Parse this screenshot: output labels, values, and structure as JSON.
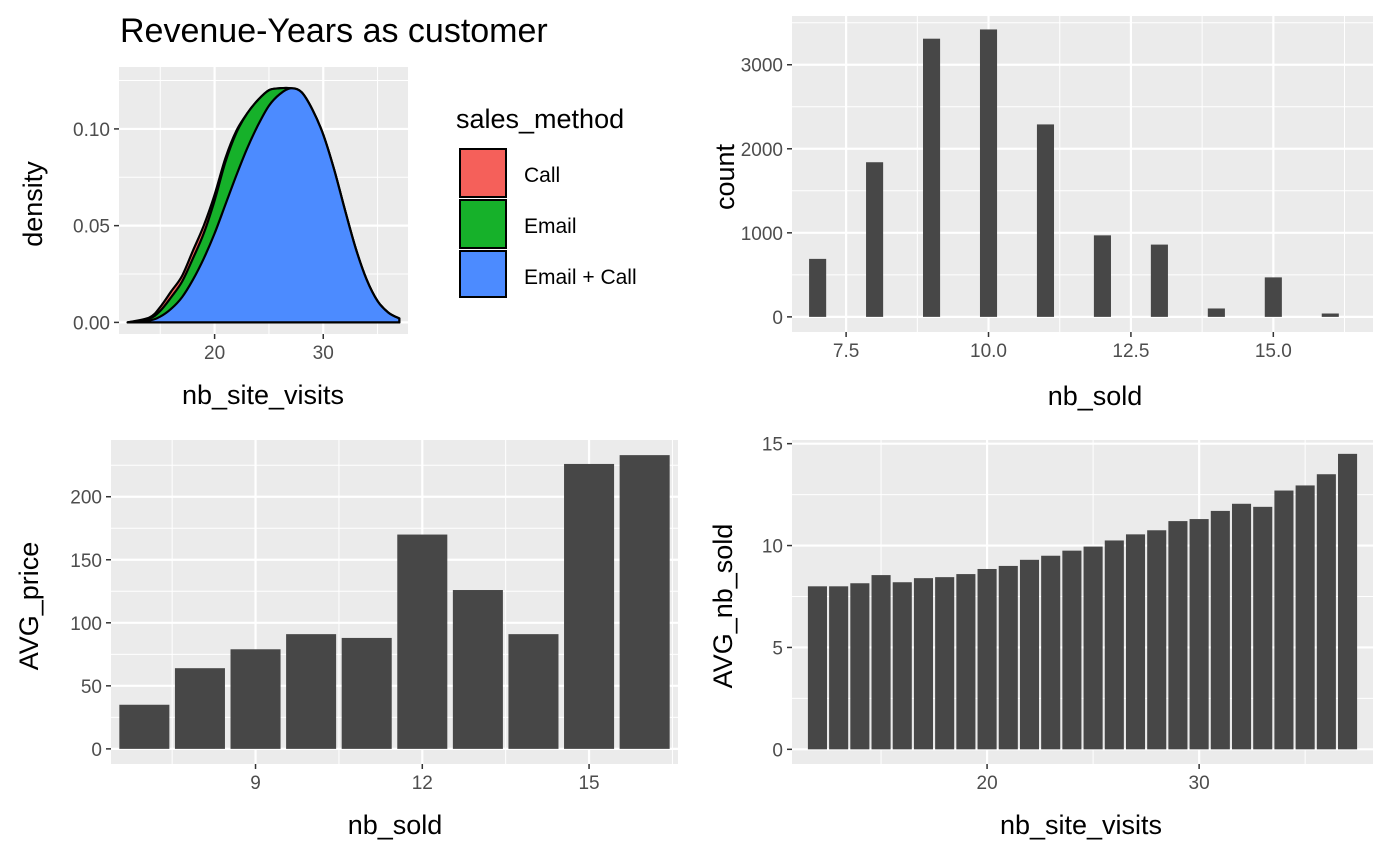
{
  "chart_data": [
    {
      "type": "area",
      "title": "Revenue-Years as customer",
      "xlabel": "nb_site_visits",
      "ylabel": "density",
      "x_ticks": [
        "20",
        "30"
      ],
      "y_ticks": [
        "0.00",
        "0.05",
        "0.10"
      ],
      "xlim": [
        11.2,
        37.8
      ],
      "ylim": [
        -0.006,
        0.132
      ],
      "stacked": true,
      "grid": true,
      "legend": {
        "title": "sales_method",
        "position": "right",
        "entries": [
          "Call",
          "Email",
          "Email + Call"
        ]
      },
      "x": [
        12,
        14,
        15,
        16,
        17,
        18,
        19,
        20,
        21,
        22,
        23,
        24,
        25,
        26,
        27,
        28,
        29,
        30,
        31,
        32,
        33,
        34,
        35,
        36,
        37
      ],
      "series": [
        {
          "name": "Email + Call",
          "color": "#4C8BFF",
          "values": [
            0.0,
            0.001,
            0.003,
            0.007,
            0.013,
            0.022,
            0.033,
            0.046,
            0.061,
            0.076,
            0.09,
            0.102,
            0.112,
            0.118,
            0.121,
            0.119,
            0.11,
            0.097,
            0.079,
            0.058,
            0.038,
            0.022,
            0.011,
            0.005,
            0.002
          ]
        },
        {
          "name": "Email",
          "color": "#16B12A",
          "values": [
            0.0,
            0.001,
            0.003,
            0.006,
            0.008,
            0.011,
            0.013,
            0.017,
            0.022,
            0.022,
            0.018,
            0.013,
            0.008,
            0.003,
            0.0,
            0,
            0,
            0,
            0,
            0,
            0,
            0,
            0,
            0,
            0
          ]
        },
        {
          "name": "Call",
          "color": "#F5605A",
          "values": [
            0.0,
            0.0005,
            0.002,
            0.003,
            0.003,
            0.004,
            0.004,
            0.003,
            0.002,
            0.001,
            0.0,
            0,
            0,
            0,
            0,
            0,
            0,
            0,
            0,
            0,
            0,
            0,
            0,
            0,
            0
          ]
        }
      ]
    },
    {
      "type": "bar",
      "xlabel": "nb_sold",
      "ylabel": "count",
      "x_ticks": [
        "7.5",
        "10.0",
        "12.5",
        "15.0"
      ],
      "y_ticks": [
        "0",
        "1000",
        "2000",
        "3000"
      ],
      "xlim": [
        6.55,
        16.75
      ],
      "ylim": [
        -180,
        3580
      ],
      "bar_width": 0.3,
      "grid": true,
      "x": [
        7,
        8,
        9,
        10,
        11,
        12,
        13,
        14,
        15,
        16
      ],
      "values": [
        690,
        1840,
        3310,
        3420,
        2290,
        970,
        860,
        100,
        470,
        40
      ]
    },
    {
      "type": "bar",
      "xlabel": "nb_sold",
      "ylabel": "AVG_price",
      "x_ticks": [
        "9",
        "12",
        "15"
      ],
      "y_ticks": [
        "0",
        "50",
        "100",
        "150",
        "200"
      ],
      "xlim": [
        6.4,
        16.6
      ],
      "ylim": [
        -12,
        245
      ],
      "bar_width": 0.9,
      "grid": true,
      "x": [
        7,
        8,
        9,
        10,
        11,
        12,
        13,
        14,
        15,
        16
      ],
      "values": [
        35,
        64,
        79,
        91,
        88,
        170,
        126,
        91,
        226,
        233
      ]
    },
    {
      "type": "bar",
      "xlabel": "nb_site_visits",
      "ylabel": "AVG_nb_sold",
      "x_ticks": [
        "20",
        "30"
      ],
      "y_ticks": [
        "0",
        "5",
        "10",
        "15"
      ],
      "xlim": [
        10.8,
        38.2
      ],
      "ylim": [
        -0.72,
        15.18
      ],
      "bar_width": 0.9,
      "grid": true,
      "x": [
        12,
        13,
        14,
        15,
        16,
        17,
        18,
        19,
        20,
        21,
        22,
        23,
        24,
        25,
        26,
        27,
        28,
        29,
        30,
        31,
        32,
        33,
        34,
        35,
        36,
        37
      ],
      "values": [
        8.0,
        8.0,
        8.15,
        8.55,
        8.2,
        8.4,
        8.45,
        8.6,
        8.85,
        9.0,
        9.3,
        9.5,
        9.75,
        9.95,
        10.25,
        10.55,
        10.75,
        11.2,
        11.3,
        11.7,
        12.05,
        11.9,
        12.7,
        12.95,
        13.5,
        14.5
      ]
    }
  ],
  "colors": {
    "panel_bg": "#EBEBEB",
    "grid": "#FFFFFF",
    "bar": "#474747",
    "outline": "#000000"
  }
}
